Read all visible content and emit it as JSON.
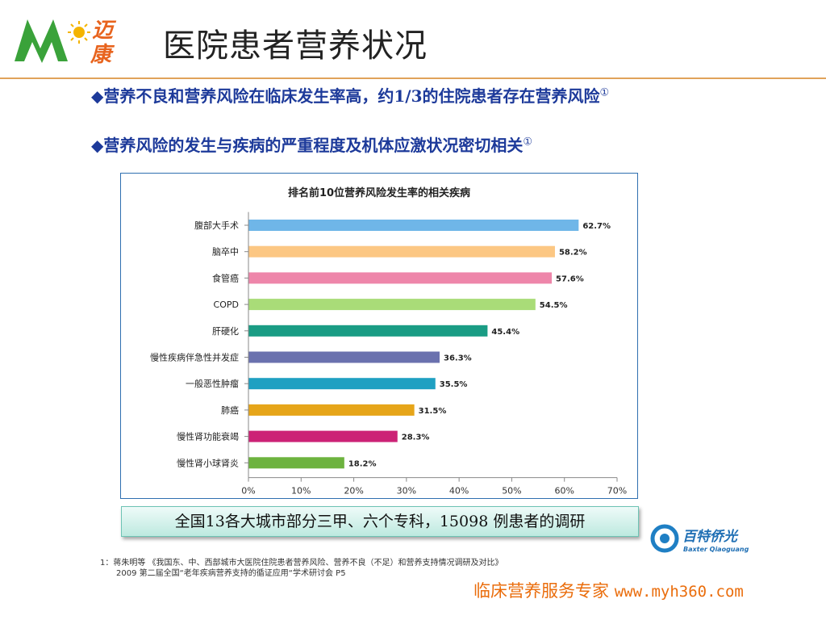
{
  "header": {
    "logo_text_top": "迈",
    "logo_text_bottom": "康",
    "title": "医院患者营养状况"
  },
  "bullets": [
    {
      "text": "◆营养不良和营养风险在临床发生率高，约1/3的住院患者存在营养风险",
      "mark": "①"
    },
    {
      "text": "◆营养风险的发生与疾病的严重程度及机体应激状况密切相关",
      "mark": "①"
    }
  ],
  "chart_data": {
    "type": "bar",
    "orientation": "horizontal",
    "title": "排名前10位营养风险发生率的相关疾病",
    "categories": [
      "腹部大手术",
      "脑卒中",
      "食管癌",
      "COPD",
      "肝硬化",
      "慢性疾病伴急性并发症",
      "一般恶性肿瘤",
      "肺癌",
      "慢性肾功能衰竭",
      "慢性肾小球肾炎"
    ],
    "values": [
      62.7,
      58.2,
      57.6,
      54.5,
      45.4,
      36.3,
      35.5,
      31.5,
      28.3,
      18.2
    ],
    "value_labels": [
      "62.7%",
      "58.2%",
      "57.6%",
      "54.5%",
      "45.4%",
      "36.3%",
      "35.5%",
      "31.5%",
      "28.3%",
      "18.2%"
    ],
    "colors": [
      "#6fb6e8",
      "#fcc783",
      "#ee86aa",
      "#a9dc78",
      "#1a9c84",
      "#6a71ae",
      "#1fa0c2",
      "#e6a519",
      "#cc2276",
      "#6db33f"
    ],
    "xlim": [
      0,
      70
    ],
    "xticks": [
      "0%",
      "10%",
      "20%",
      "30%",
      "40%",
      "50%",
      "60%",
      "70%"
    ],
    "grid": false,
    "legend": "none"
  },
  "banner": {
    "text": "全国13各大城市部分三甲、六个专科，15098 例患者的调研"
  },
  "brand": {
    "name": "百特侨光",
    "sub": "Baxter Qiaoguang"
  },
  "footnote": {
    "line1": "1：蒋朱明等 《我国东、中、西部城市大医院住院患者营养风险、营养不良（不足）和营养支持情况调研及对比》",
    "line2": "2009  第二届全国“老年疾病营养支持的循证应用“学术研讨会 P5"
  },
  "slogan": {
    "text": "临床营养服务专家 ",
    "url": "www.myh360.com"
  }
}
